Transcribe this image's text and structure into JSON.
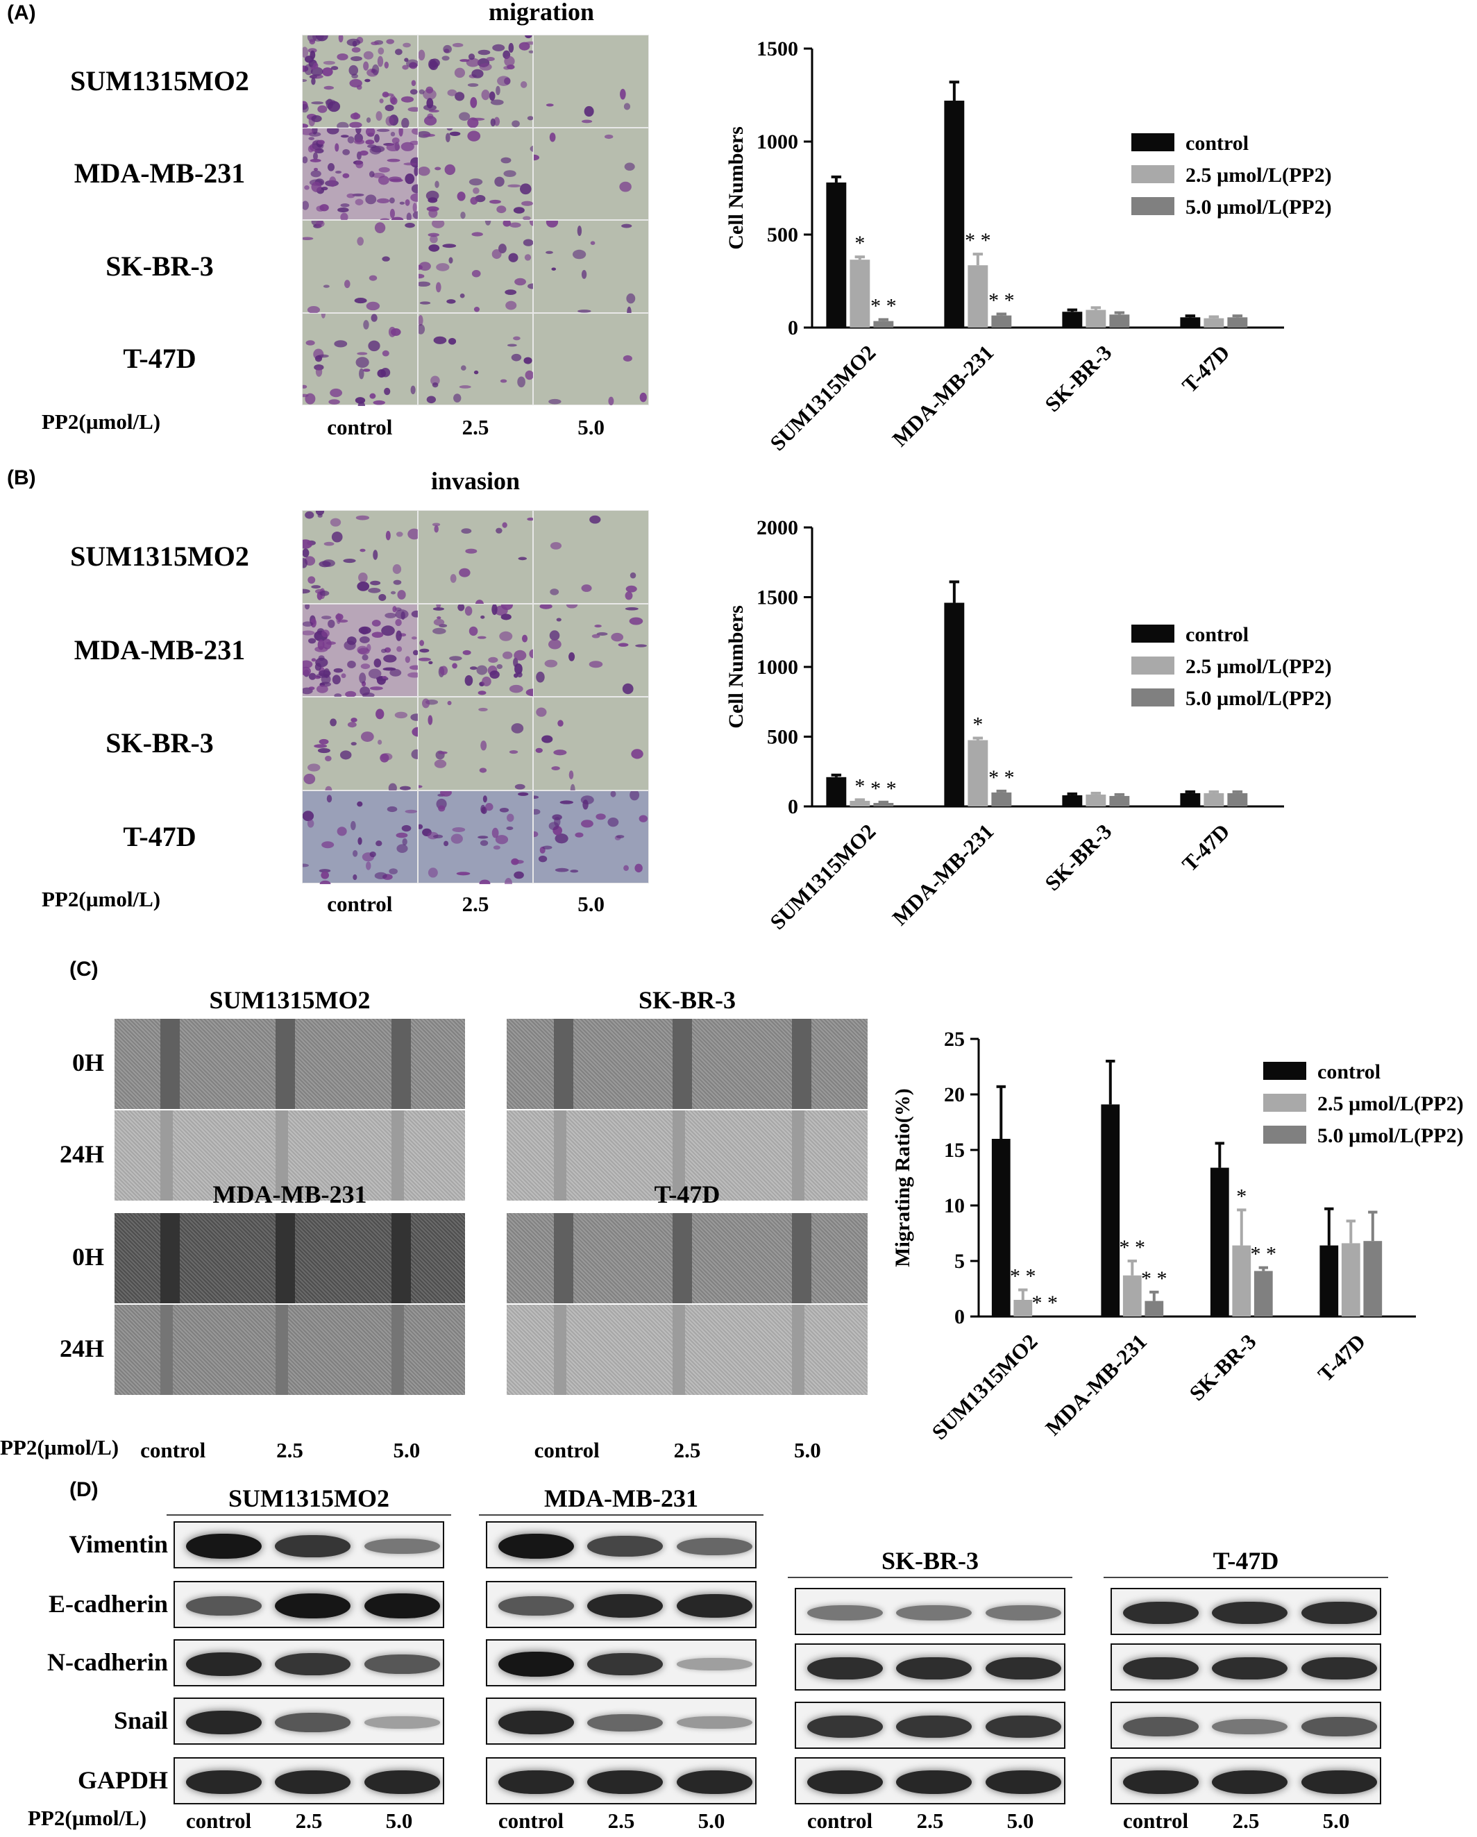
{
  "panels": {
    "A": {
      "label": "(A)",
      "title": "migration",
      "rows": [
        "SUM1315MO2",
        "MDA-MB-231",
        "SK-BR-3",
        "T-47D"
      ],
      "treatment_label": "PP2(µmol/L)",
      "columns": [
        "control",
        "2.5",
        "5.0"
      ]
    },
    "B": {
      "label": "(B)",
      "title": "invasion",
      "rows": [
        "SUM1315MO2",
        "MDA-MB-231",
        "SK-BR-3",
        "T-47D"
      ],
      "treatment_label": "PP2(µmol/L)",
      "columns": [
        "control",
        "2.5",
        "5.0"
      ]
    },
    "C": {
      "label": "(C)",
      "groups": [
        "SUM1315MO2",
        "SK-BR-3",
        "MDA-MB-231",
        "T-47D"
      ],
      "times": [
        "0H",
        "24H"
      ],
      "treatment_label": "PP2(µmol/L)",
      "columns": [
        "control",
        "2.5",
        "5.0"
      ]
    },
    "D": {
      "label": "(D)",
      "groups": [
        "SUM1315MO2",
        "MDA-MB-231",
        "SK-BR-3",
        "T-47D"
      ],
      "proteins": [
        "Vimentin",
        "E-cadherin",
        "N-cadherin",
        "Snail",
        "GAPDH"
      ],
      "treatment_label": "PP2(µmol/L)",
      "columns": [
        "control",
        "2.5",
        "5.0"
      ]
    }
  },
  "chart_data": [
    {
      "type": "bar",
      "ylabel": "Cell Numbers",
      "ylim": [
        0,
        1500
      ],
      "yticks": [
        "0",
        "500",
        "1000",
        "1500"
      ],
      "categories": [
        "SUM1315MO2",
        "MDA-MB-231",
        "SK-BR-3",
        "T-47D"
      ],
      "series": [
        {
          "name": "control",
          "values": [
            780,
            1220,
            85,
            55
          ],
          "errors": [
            30,
            100,
            10,
            8
          ]
        },
        {
          "name": "2.5 µmol/L(PP2)",
          "values": [
            365,
            335,
            95,
            50
          ],
          "errors": [
            15,
            60,
            12,
            8
          ]
        },
        {
          "name": "5.0 µmol/L(PP2)",
          "values": [
            35,
            65,
            70,
            55
          ],
          "errors": [
            8,
            8,
            10,
            8
          ]
        }
      ],
      "annotations": [
        [
          "",
          "*",
          "**"
        ],
        [
          "",
          "**",
          "**"
        ],
        [
          "",
          "",
          ""
        ],
        [
          "",
          "",
          ""
        ]
      ],
      "colors": [
        "#0a0a0a",
        "#a9a9a9",
        "#808080"
      ],
      "legend": "right"
    },
    {
      "type": "bar",
      "ylabel": "Cell Numbers",
      "ylim": [
        0,
        2000
      ],
      "yticks": [
        "0",
        "500",
        "1000",
        "1500",
        "2000"
      ],
      "categories": [
        "SUM1315MO2",
        "MDA-MB-231",
        "SK-BR-3",
        "T-47D"
      ],
      "series": [
        {
          "name": "control",
          "values": [
            210,
            1460,
            80,
            95
          ],
          "errors": [
            15,
            150,
            10,
            10
          ]
        },
        {
          "name": "2.5 µmol/L(PP2)",
          "values": [
            40,
            475,
            85,
            95
          ],
          "errors": [
            8,
            15,
            10,
            10
          ]
        },
        {
          "name": "5.0 µmol/L(PP2)",
          "values": [
            25,
            100,
            75,
            95
          ],
          "errors": [
            6,
            10,
            10,
            10
          ]
        }
      ],
      "annotations": [
        [
          "",
          "*",
          "**"
        ],
        [
          "",
          "*",
          "**"
        ],
        [
          "",
          "",
          ""
        ],
        [
          "",
          "",
          ""
        ]
      ],
      "colors": [
        "#0a0a0a",
        "#a9a9a9",
        "#808080"
      ],
      "legend": "right"
    },
    {
      "type": "bar",
      "ylabel": "Migrating Ratio(%)",
      "ylim": [
        0,
        25
      ],
      "yticks": [
        "0",
        "5",
        "10",
        "15",
        "20",
        "25"
      ],
      "categories": [
        "SUM1315MO2",
        "MDA-MB-231",
        "SK-BR-3",
        "T-47D"
      ],
      "series": [
        {
          "name": "control",
          "values": [
            16,
            19.1,
            13.4,
            6.4
          ],
          "errors": [
            4.7,
            3.9,
            2.2,
            3.3
          ]
        },
        {
          "name": "2.5 µmol/L(PP2)",
          "values": [
            1.5,
            3.7,
            6.4,
            6.6
          ],
          "errors": [
            0.9,
            1.3,
            3.2,
            2.0
          ]
        },
        {
          "name": "5.0 µmol/L(PP2)",
          "values": [
            0,
            1.4,
            4.1,
            6.8
          ],
          "errors": [
            0,
            0.8,
            0.3,
            2.6
          ]
        }
      ],
      "annotations": [
        [
          "",
          "**",
          "**"
        ],
        [
          "",
          "**",
          "**"
        ],
        [
          "",
          "*",
          "**"
        ],
        [
          "",
          "",
          ""
        ]
      ],
      "colors": [
        "#0a0a0a",
        "#a9a9a9",
        "#808080"
      ],
      "legend": "right"
    }
  ]
}
